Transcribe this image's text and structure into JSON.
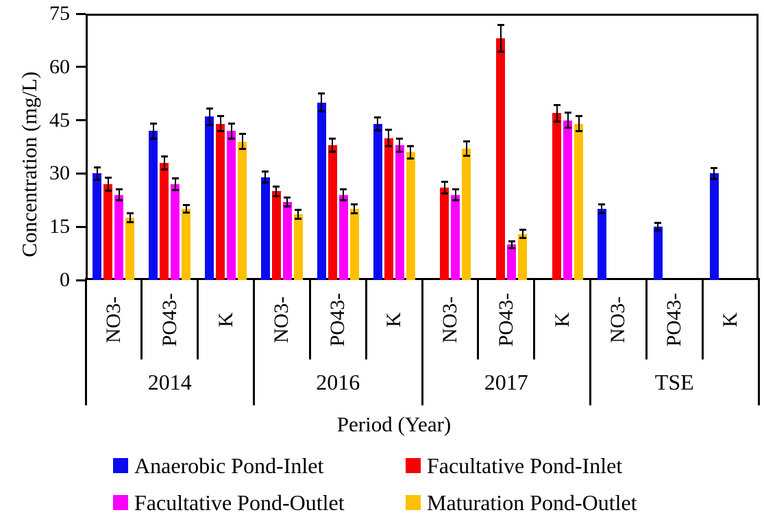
{
  "chart_data": {
    "type": "bar",
    "title": "",
    "xlabel": "Period (Year)",
    "ylabel": "Concentration (mg/L)",
    "ylim": [
      0,
      75
    ],
    "yticks": [
      0,
      15,
      30,
      45,
      60,
      75
    ],
    "grid": false,
    "legend_position": "bottom",
    "error_bars": true,
    "groups": [
      {
        "label": "2014",
        "subs": [
          "NO3-",
          "PO43-",
          "K"
        ]
      },
      {
        "label": "2016",
        "subs": [
          "NO3-",
          "PO43-",
          "K"
        ]
      },
      {
        "label": "2017",
        "subs": [
          "NO3-",
          "PO43-",
          "K"
        ]
      },
      {
        "label": "TSE",
        "subs": [
          "NO3-",
          "PO43-",
          "K"
        ]
      }
    ],
    "series": [
      {
        "name": "Anaerobic Pond-Inlet",
        "color": "#0b0bf0",
        "values": [
          30,
          42,
          46,
          29,
          50,
          44,
          null,
          null,
          null,
          20,
          15,
          30
        ],
        "errors": [
          1.5,
          1.8,
          2,
          1.2,
          2.2,
          1.5,
          null,
          null,
          null,
          1,
          0.8,
          1.3
        ]
      },
      {
        "name": "Facultative Pond-Inlet",
        "color": "#f70104",
        "values": [
          27,
          33,
          44,
          25,
          38,
          40,
          26,
          68,
          47,
          null,
          null,
          null
        ],
        "errors": [
          1.5,
          1.5,
          1.8,
          1,
          1.5,
          2,
          1.3,
          3.5,
          2,
          null,
          null,
          null
        ]
      },
      {
        "name": "Facultative Pond-Outlet",
        "color": "#fb00fb",
        "values": [
          24,
          27,
          42,
          22,
          24,
          38,
          24,
          10,
          45,
          null,
          null,
          null
        ],
        "errors": [
          1.2,
          1.3,
          1.8,
          1,
          1.3,
          1.5,
          1.2,
          0.7,
          1.8,
          null,
          null,
          null
        ]
      },
      {
        "name": "Maturation Pond-Outlet",
        "color": "#ffc003",
        "values": [
          17.5,
          20,
          39,
          18.5,
          20,
          36,
          37,
          13,
          44,
          null,
          null,
          null
        ],
        "errors": [
          1,
          0.8,
          1.8,
          1,
          1,
          1.5,
          1.7,
          0.8,
          1.8,
          null,
          null,
          null
        ]
      }
    ]
  }
}
